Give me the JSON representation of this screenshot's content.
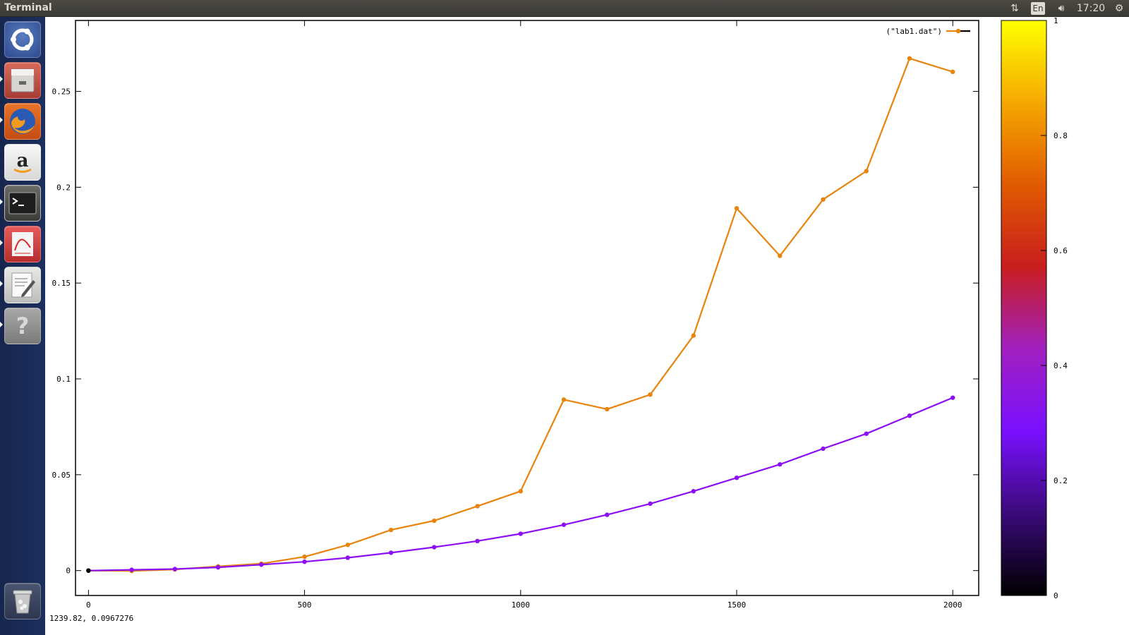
{
  "topbar": {
    "window_title": "Terminal",
    "indicators": {
      "network_icon": "network-up-down-icon",
      "language": "En",
      "sound_icon": "speaker-icon",
      "clock": "17:20",
      "session_icon": "gear-icon"
    }
  },
  "launcher": {
    "items": [
      {
        "name": "ubuntu-dash",
        "icon": "ubuntu-logo-icon",
        "color": "#2d4a8f"
      },
      {
        "name": "files",
        "icon": "filing-cabinet-icon",
        "color": "#c64b4b"
      },
      {
        "name": "firefox",
        "icon": "firefox-icon",
        "color": "#e66000"
      },
      {
        "name": "amazon",
        "icon": "amazon-icon",
        "color": "#f2f2f2"
      },
      {
        "name": "terminal",
        "icon": "terminal-icon",
        "color": "#2b2b2b"
      },
      {
        "name": "document-viewer",
        "icon": "pdf-viewer-icon",
        "color": "#e34040"
      },
      {
        "name": "text-editor",
        "icon": "text-editor-icon",
        "color": "#dcdcdc"
      },
      {
        "name": "help",
        "icon": "question-mark-icon",
        "color": "#888888"
      },
      {
        "name": "trash",
        "icon": "trash-icon",
        "color": "#bfbfbf"
      }
    ]
  },
  "status": {
    "coordinates": "1239.82,  0.0967276"
  },
  "chart_data": {
    "type": "line",
    "title": "",
    "xlabel": "",
    "ylabel": "",
    "xlim": [
      -30,
      2060
    ],
    "ylim": [
      -0.013,
      0.287
    ],
    "x_ticks": [
      0,
      500,
      1000,
      1500,
      2000
    ],
    "y_ticks": [
      0,
      0.05,
      0.1,
      0.15,
      0.2,
      0.25
    ],
    "x_tick_labels": [
      "0",
      "500",
      "1000",
      "1500",
      "2000"
    ],
    "y_tick_labels": [
      "0",
      "0.05",
      "0.1",
      "0.15",
      "0.2",
      "0.25"
    ],
    "grid": false,
    "legend": {
      "position": "top-right",
      "entry": "(\"lab1.dat\")"
    },
    "series": [
      {
        "name": "(\"lab1.dat\")",
        "color": "#e8830c",
        "x": [
          0,
          100,
          200,
          300,
          400,
          500,
          600,
          700,
          800,
          900,
          1000,
          1100,
          1200,
          1300,
          1400,
          1500,
          1600,
          1700,
          1800,
          1900,
          2000
        ],
        "y": [
          0,
          -0.0002,
          0.0006,
          0.0022,
          0.0036,
          0.0072,
          0.0134,
          0.0212,
          0.026,
          0.0336,
          0.0414,
          0.0892,
          0.0842,
          0.0918,
          0.1226,
          0.189,
          0.1642,
          0.1936,
          0.2084,
          0.2672,
          0.2602
        ]
      },
      {
        "color": "#8c0ff5",
        "x": [
          0,
          100,
          200,
          300,
          400,
          500,
          600,
          700,
          800,
          900,
          1000,
          1100,
          1200,
          1300,
          1400,
          1500,
          1600,
          1700,
          1800,
          1900,
          2000
        ],
        "y": [
          0,
          0.0004,
          0.0008,
          0.0017,
          0.0031,
          0.0046,
          0.0067,
          0.0093,
          0.0122,
          0.0154,
          0.0192,
          0.0239,
          0.0291,
          0.0349,
          0.0414,
          0.0484,
          0.0554,
          0.0636,
          0.0714,
          0.0808,
          0.0902
        ]
      }
    ],
    "colorbar": {
      "range": [
        0,
        1
      ],
      "ticks": [
        0,
        0.2,
        0.4,
        0.6,
        0.8,
        1
      ],
      "tick_labels": [
        "0",
        "0.2",
        "0.4",
        "0.6",
        "0.8",
        "1"
      ],
      "palette": [
        "#000000",
        "#3a0a7a",
        "#7a10ff",
        "#a020c0",
        "#c81e1e",
        "#e05a00",
        "#f5a800",
        "#ffff00"
      ]
    }
  }
}
